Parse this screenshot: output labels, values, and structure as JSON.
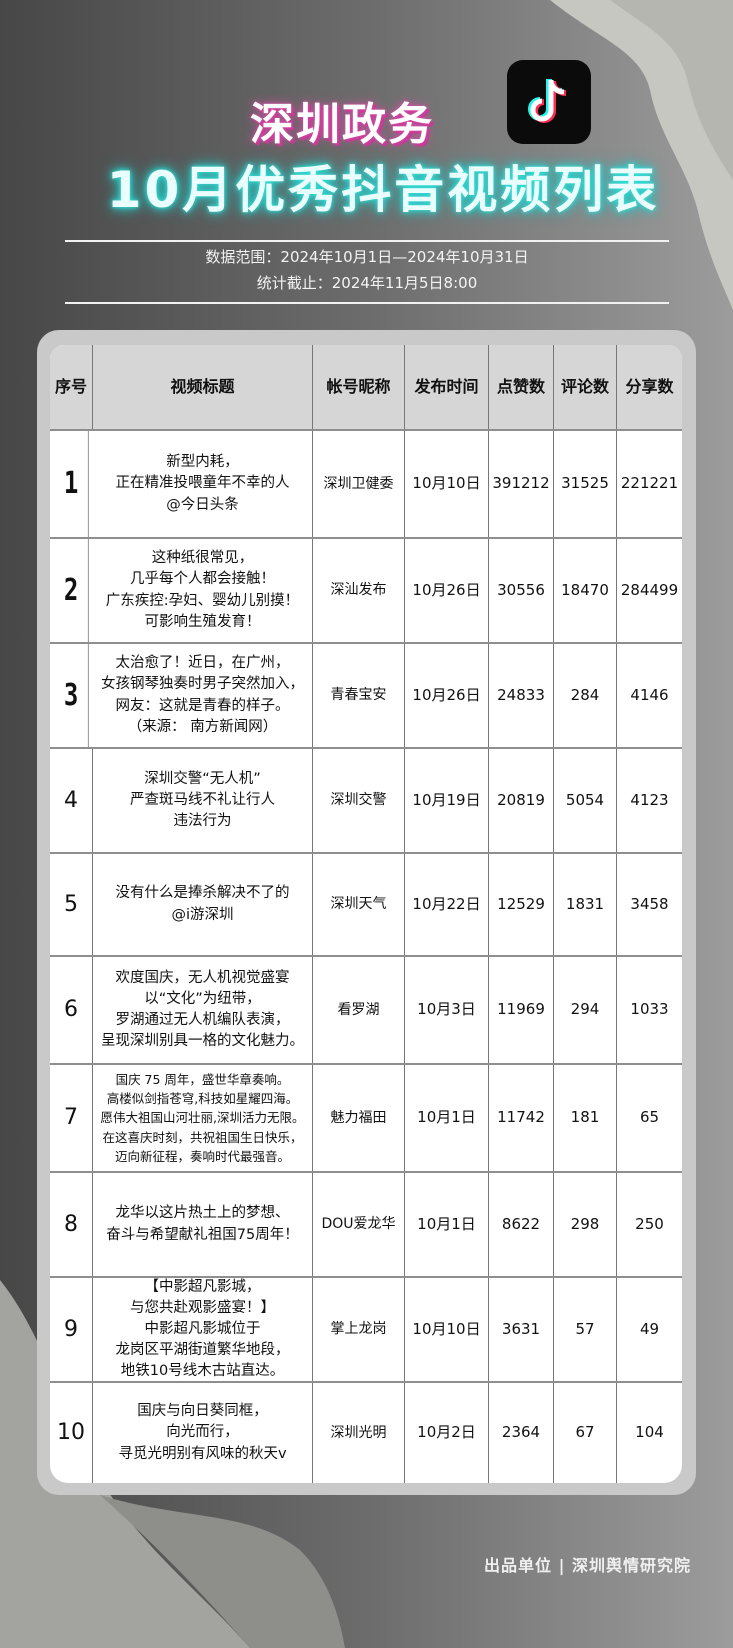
{
  "header": {
    "title_line1": "深圳政务",
    "title_line2": "10月优秀抖音视频列表",
    "logo_icon": "tiktok-icon",
    "data_range": "数据范围：2024年10月1日—2024年10月31日",
    "cutoff": "统计截止：2024年11月5日8:00"
  },
  "colors": {
    "title1_glow": "#d84fa8",
    "title2_glow": "#2bd5d0",
    "header_bg": "#d6d6d6",
    "card_bg": "#c9c9c9"
  },
  "table": {
    "columns": [
      "序号",
      "视频标题",
      "帐号昵称",
      "发布时间",
      "点赞数",
      "评论数",
      "分享数"
    ],
    "rows": [
      {
        "rank": "1",
        "title": "新型内耗，\n正在精准投喂童年不幸的人\n@今日头条",
        "account": "深圳卫健委",
        "date": "10月10日",
        "likes": "391212",
        "comments": "31525",
        "shares": "221221"
      },
      {
        "rank": "2",
        "title": "这种纸很常见，\n几乎每个人都会接触！\n广东疾控:孕妇、婴幼儿别摸！\n可影响生殖发育！",
        "account": "深汕发布",
        "date": "10月26日",
        "likes": "30556",
        "comments": "18470",
        "shares": "284499"
      },
      {
        "rank": "3",
        "title": "太治愈了！近日，在广州，\n女孩钢琴独奏时男子突然加入，\n网友：这就是青春的样子。\n（来源： 南方新闻网）",
        "account": "青春宝安",
        "date": "10月26日",
        "likes": "24833",
        "comments": "284",
        "shares": "4146"
      },
      {
        "rank": "4",
        "title": "深圳交警“无人机”\n严查斑马线不礼让行人\n违法行为",
        "account": "深圳交警",
        "date": "10月19日",
        "likes": "20819",
        "comments": "5054",
        "shares": "4123"
      },
      {
        "rank": "5",
        "title": "没有什么是捧杀解决不了的\n@i游深圳",
        "account": "深圳天气",
        "date": "10月22日",
        "likes": "12529",
        "comments": "1831",
        "shares": "3458"
      },
      {
        "rank": "6",
        "title": "欢度国庆，无人机视觉盛宴\n以“文化”为纽带，\n罗湖通过无人机编队表演，\n呈现深圳别具一格的文化魅力。",
        "account": "看罗湖",
        "date": "10月3日",
        "likes": "11969",
        "comments": "294",
        "shares": "1033"
      },
      {
        "rank": "7",
        "title": "国庆 75 周年，盛世华章奏响。\n高楼似剑指苍穹,科技如星耀四海。\n愿伟大祖国山河壮丽,深圳活力无限。\n在这喜庆时刻，共祝祖国生日快乐，\n迈向新征程，奏响时代最强音。",
        "account": "魅力福田",
        "date": "10月1日",
        "likes": "11742",
        "comments": "181",
        "shares": "65"
      },
      {
        "rank": "8",
        "title": "龙华以这片热土上的梦想、\n奋斗与希望献礼祖国75周年！",
        "account": "DOU爱龙华",
        "date": "10月1日",
        "likes": "8622",
        "comments": "298",
        "shares": "250"
      },
      {
        "rank": "9",
        "title": "【中影超凡影城，\n与您共赴观影盛宴！】\n中影超凡影城位于\n龙岗区平湖街道繁华地段，\n地铁10号线木古站直达。",
        "account": "掌上龙岗",
        "date": "10月10日",
        "likes": "3631",
        "comments": "57",
        "shares": "49"
      },
      {
        "rank": "10",
        "title": "国庆与向日葵同框，\n向光而行，\n寻觅光明别有风味的秋天v",
        "account": "深圳光明",
        "date": "10月2日",
        "likes": "2364",
        "comments": "67",
        "shares": "104"
      }
    ]
  },
  "footer": {
    "credit": "出品单位 | 深圳舆情研究院"
  }
}
